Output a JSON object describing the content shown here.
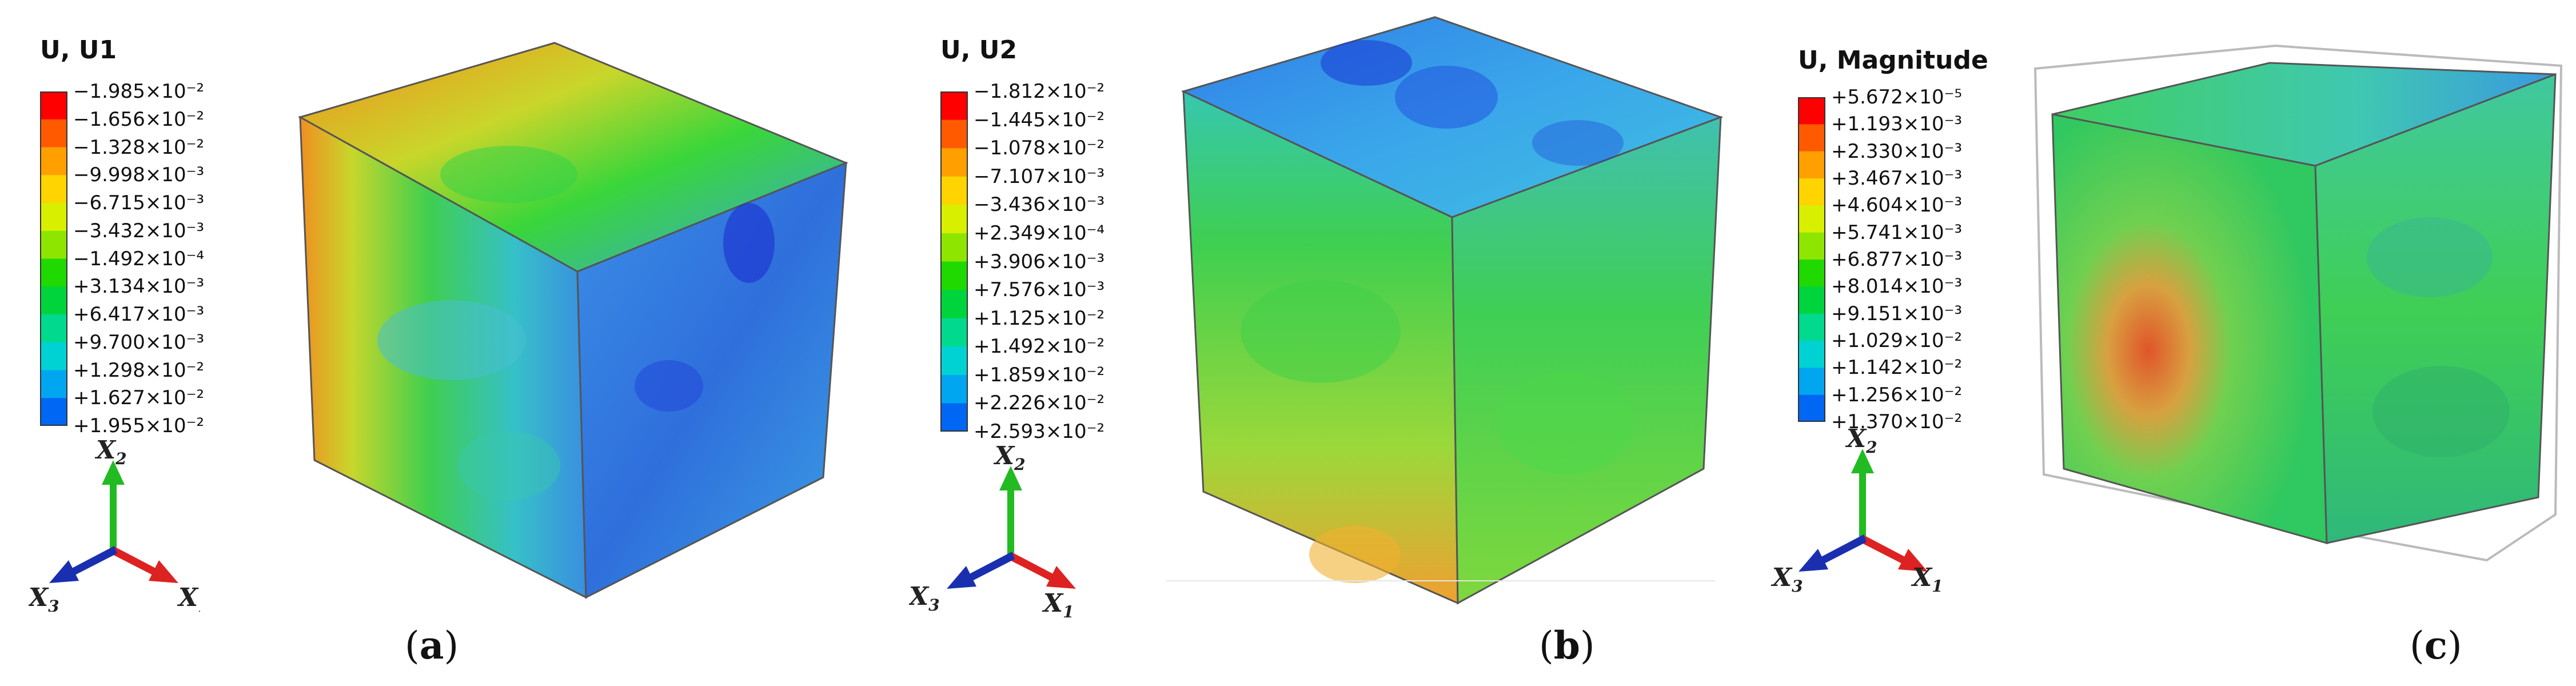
{
  "panels": [
    {
      "id": "a",
      "legend_title": "U, U1",
      "ticks": [
        "−1.985×10⁻²",
        "−1.656×10⁻²",
        "−1.328×10⁻²",
        "−9.998×10⁻³",
        "−6.715×10⁻³",
        "−3.432×10⁻³",
        "−1.492×10⁻⁴",
        "+3.134×10⁻³",
        "+6.417×10⁻³",
        "+9.700×10⁻³",
        "+1.298×10⁻²",
        "+1.627×10⁻²",
        "+1.955×10⁻²"
      ],
      "caption_open": "(",
      "caption_letter": "a",
      "caption_close": ")"
    },
    {
      "id": "b",
      "legend_title": "U, U2",
      "ticks": [
        "−1.812×10⁻²",
        "−1.445×10⁻²",
        "−1.078×10⁻²",
        "−7.107×10⁻³",
        "−3.436×10⁻³",
        "+2.349×10⁻⁴",
        "+3.906×10⁻³",
        "+7.576×10⁻³",
        "+1.125×10⁻²",
        "+1.492×10⁻²",
        "+1.859×10⁻²",
        "+2.226×10⁻²",
        "+2.593×10⁻²"
      ],
      "caption_open": "(",
      "caption_letter": "b",
      "caption_close": ")"
    },
    {
      "id": "c",
      "legend_title": "U, Magnitude",
      "ticks": [
        "+5.672×10⁻⁵",
        "+1.193×10⁻³",
        "+2.330×10⁻³",
        "+3.467×10⁻³",
        "+4.604×10⁻³",
        "+5.741×10⁻³",
        "+6.877×10⁻³",
        "+8.014×10⁻³",
        "+9.151×10⁻³",
        "+1.029×10⁻²",
        "+1.142×10⁻²",
        "+1.256×10⁻²",
        "+1.370×10⁻²"
      ],
      "caption_open": "(",
      "caption_letter": "c",
      "caption_close": ")"
    }
  ],
  "axes": {
    "x1_base": "X",
    "x1_sub": "1",
    "x2_base": "X",
    "x2_sub": "2",
    "x3_base": "X",
    "x3_sub": "3"
  },
  "colors": {
    "legend_scale": [
      "#ff0000",
      "#ff5a00",
      "#ff9f00",
      "#ffd400",
      "#d8f000",
      "#8ee600",
      "#1fd900",
      "#00d43c",
      "#00d98e",
      "#00d2d4",
      "#00a6f0",
      "#0066f4",
      "#0000ff"
    ],
    "axis_x1": "#dd2222",
    "axis_x2": "#22bb22",
    "axis_x3": "#1a2fb0"
  }
}
